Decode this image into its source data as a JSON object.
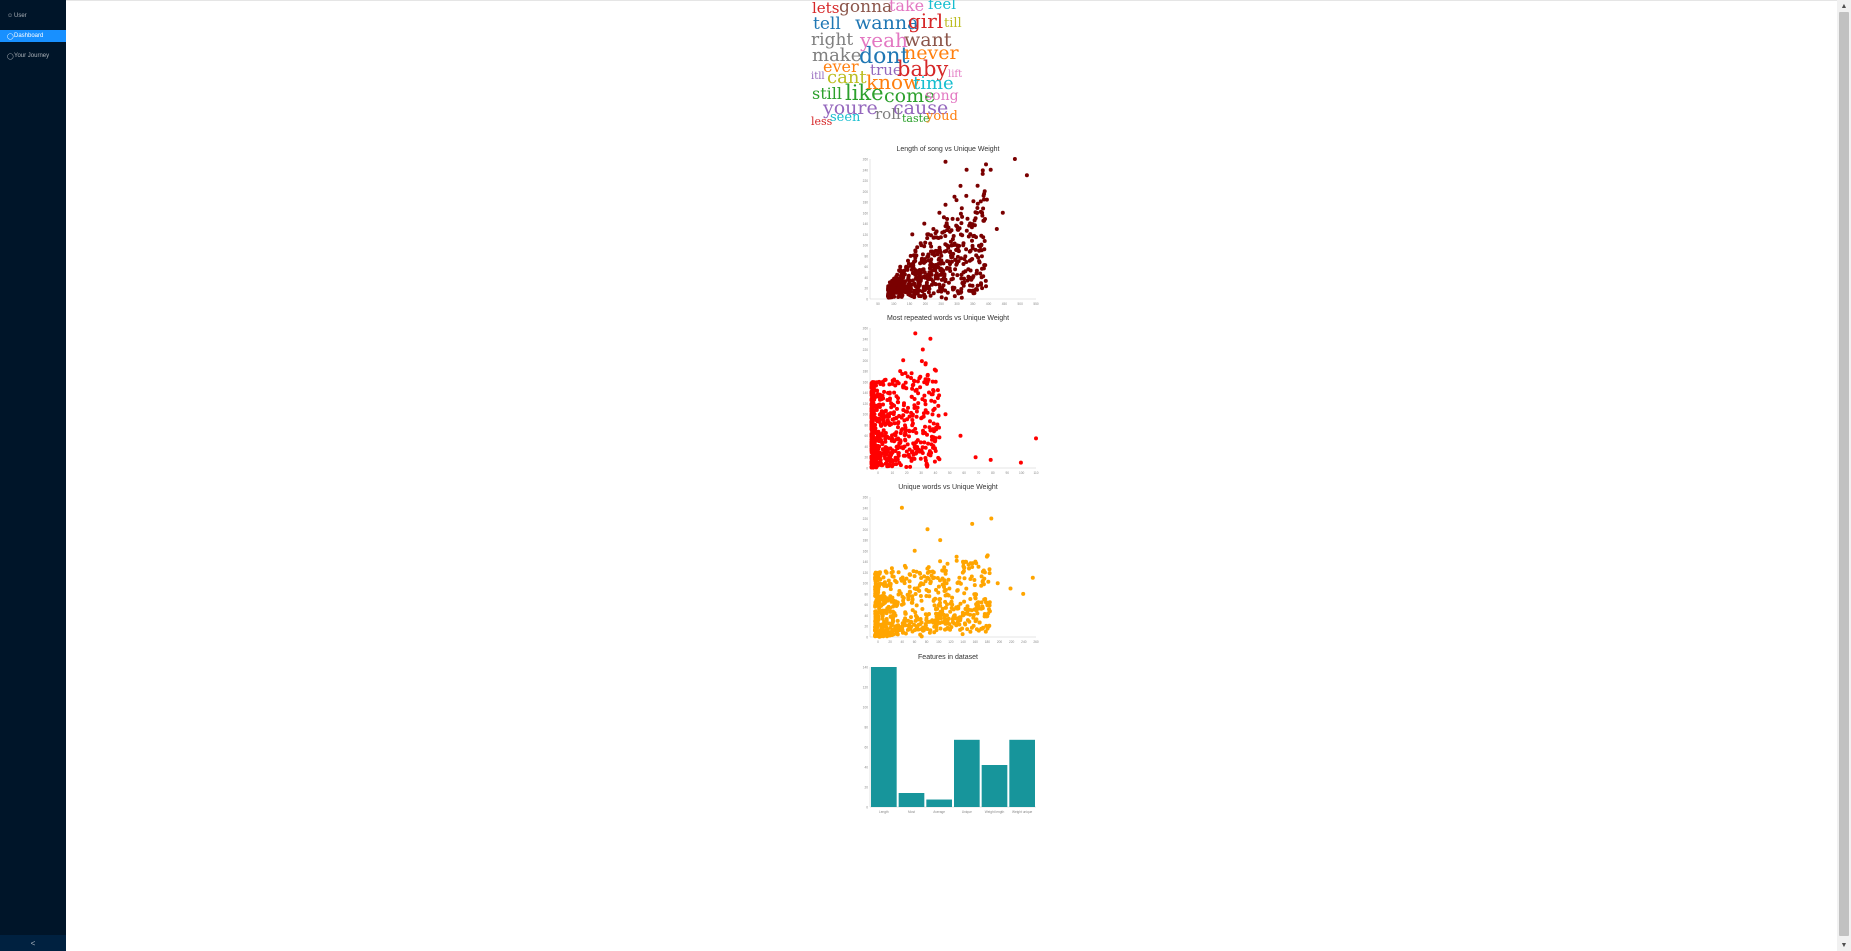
{
  "sidebar": {
    "items": [
      {
        "label": "User",
        "icon": "user-icon"
      },
      {
        "label": "Dashboard",
        "icon": "dashboard-icon",
        "active": true
      },
      {
        "label": "Your Journey",
        "icon": "journey-icon"
      }
    ],
    "collapse_glyph": "<"
  },
  "wordcloud": {
    "words": [
      {
        "text": "lets",
        "color": "#d62728"
      },
      {
        "text": "gonna",
        "color": "#8c564b"
      },
      {
        "text": "take",
        "color": "#e377c2"
      },
      {
        "text": "feel",
        "color": "#17becf"
      },
      {
        "text": "tell",
        "color": "#1f77b4"
      },
      {
        "text": "wanna",
        "color": "#1f77b4"
      },
      {
        "text": "girl",
        "color": "#d62728"
      },
      {
        "text": "till",
        "color": "#bcbd22"
      },
      {
        "text": "right",
        "color": "#7f7f7f"
      },
      {
        "text": "yeah",
        "color": "#e377c2"
      },
      {
        "text": "want",
        "color": "#8c564b"
      },
      {
        "text": "make",
        "color": "#7f7f7f"
      },
      {
        "text": "dont",
        "color": "#1f77b4"
      },
      {
        "text": "never",
        "color": "#ff7f0e"
      },
      {
        "text": "ever",
        "color": "#ff7f0e"
      },
      {
        "text": "true",
        "color": "#9467bd"
      },
      {
        "text": "baby",
        "color": "#d62728"
      },
      {
        "text": "itll",
        "color": "#9467bd"
      },
      {
        "text": "cant",
        "color": "#bcbd22"
      },
      {
        "text": "know",
        "color": "#ff7f0e"
      },
      {
        "text": "time",
        "color": "#17becf"
      },
      {
        "text": "lift",
        "color": "#e377c2"
      },
      {
        "text": "still",
        "color": "#2ca02c"
      },
      {
        "text": "like",
        "color": "#2ca02c"
      },
      {
        "text": "come",
        "color": "#2ca02c"
      },
      {
        "text": "song",
        "color": "#e377c2"
      },
      {
        "text": "youre",
        "color": "#9467bd"
      },
      {
        "text": "cause",
        "color": "#9467bd"
      },
      {
        "text": "less",
        "color": "#d62728"
      },
      {
        "text": "seen",
        "color": "#17becf"
      },
      {
        "text": "roll",
        "color": "#7f7f7f"
      },
      {
        "text": "taste",
        "color": "#2ca02c"
      },
      {
        "text": "youd",
        "color": "#ff7f0e"
      }
    ]
  },
  "chart_data": [
    {
      "type": "scatter",
      "title": "Length of song vs Unique Weight",
      "color": "#7a0000",
      "xlim": [
        0,
        550
      ],
      "ylim": [
        0,
        260
      ],
      "x_ticks": [
        "50",
        "100",
        "150",
        "200",
        "250",
        "300",
        "350",
        "400",
        "450",
        "500",
        "550"
      ],
      "y_ticks": [
        "0",
        "20",
        "40",
        "60",
        "80",
        "100",
        "120",
        "140",
        "160",
        "180",
        "200",
        "220",
        "240",
        "260"
      ],
      "points": [
        [
          60,
          5
        ],
        [
          80,
          20
        ],
        [
          95,
          35
        ],
        [
          110,
          40
        ],
        [
          120,
          60
        ],
        [
          135,
          80
        ],
        [
          150,
          90
        ],
        [
          170,
          100
        ],
        [
          190,
          120
        ],
        [
          210,
          130
        ],
        [
          230,
          160
        ],
        [
          250,
          175
        ],
        [
          280,
          190
        ],
        [
          300,
          210
        ],
        [
          320,
          240
        ],
        [
          350,
          150
        ],
        [
          380,
          200
        ],
        [
          400,
          240
        ],
        [
          420,
          130
        ],
        [
          440,
          160
        ],
        [
          480,
          260
        ],
        [
          520,
          230
        ],
        [
          250,
          255
        ],
        [
          180,
          140
        ],
        [
          140,
          120
        ],
        [
          100,
          60
        ],
        [
          90,
          45
        ],
        [
          70,
          15
        ]
      ]
    },
    {
      "type": "scatter",
      "title": "Most repeated words vs Unique Weight",
      "color": "#ff0000",
      "xlim": [
        0,
        110
      ],
      "ylim": [
        0,
        260
      ],
      "x_ticks": [
        "0",
        "10",
        "20",
        "30",
        "40",
        "50",
        "60",
        "70",
        "80",
        "90",
        "100",
        "110"
      ],
      "y_ticks": [
        "0",
        "20",
        "40",
        "60",
        "80",
        "100",
        "120",
        "140",
        "160",
        "180",
        "200",
        "220",
        "240",
        "260"
      ],
      "points": [
        [
          2,
          5
        ],
        [
          4,
          20
        ],
        [
          6,
          40
        ],
        [
          8,
          60
        ],
        [
          10,
          80
        ],
        [
          12,
          100
        ],
        [
          14,
          120
        ],
        [
          16,
          140
        ],
        [
          18,
          160
        ],
        [
          20,
          180
        ],
        [
          22,
          200
        ],
        [
          30,
          250
        ],
        [
          35,
          220
        ],
        [
          40,
          240
        ],
        [
          45,
          130
        ],
        [
          50,
          100
        ],
        [
          60,
          60
        ],
        [
          70,
          20
        ],
        [
          80,
          15
        ],
        [
          100,
          10
        ],
        [
          110,
          55
        ],
        [
          25,
          170
        ],
        [
          15,
          90
        ],
        [
          5,
          30
        ]
      ]
    },
    {
      "type": "scatter",
      "title": "Unique words vs Unique Weight",
      "color": "#ffa500",
      "xlim": [
        0,
        260
      ],
      "ylim": [
        0,
        260
      ],
      "x_ticks": [
        "0",
        "20",
        "40",
        "60",
        "80",
        "100",
        "120",
        "140",
        "160",
        "180",
        "200",
        "220",
        "240",
        "260"
      ],
      "y_ticks": [
        "0",
        "20",
        "40",
        "60",
        "80",
        "100",
        "120",
        "140",
        "160",
        "180",
        "200",
        "220",
        "240",
        "260"
      ],
      "points": [
        [
          10,
          5
        ],
        [
          20,
          15
        ],
        [
          30,
          25
        ],
        [
          40,
          40
        ],
        [
          50,
          60
        ],
        [
          60,
          70
        ],
        [
          70,
          90
        ],
        [
          80,
          100
        ],
        [
          90,
          110
        ],
        [
          100,
          120
        ],
        [
          120,
          100
        ],
        [
          140,
          110
        ],
        [
          160,
          130
        ],
        [
          180,
          120
        ],
        [
          200,
          100
        ],
        [
          220,
          90
        ],
        [
          240,
          80
        ],
        [
          255,
          110
        ],
        [
          70,
          160
        ],
        [
          90,
          200
        ],
        [
          110,
          180
        ],
        [
          50,
          240
        ],
        [
          160,
          210
        ],
        [
          190,
          220
        ]
      ]
    },
    {
      "type": "bar",
      "title": "Features in dataset",
      "color": "#17959b",
      "categories": [
        "Length",
        "Most",
        "Average",
        "Unique",
        "Weight length",
        "Weight unique"
      ],
      "values": [
        150,
        15,
        8,
        72,
        45,
        72
      ],
      "ylim": [
        0,
        150
      ],
      "y_ticks": [
        "0",
        "20",
        "40",
        "60",
        "80",
        "100",
        "120",
        "140"
      ]
    }
  ]
}
